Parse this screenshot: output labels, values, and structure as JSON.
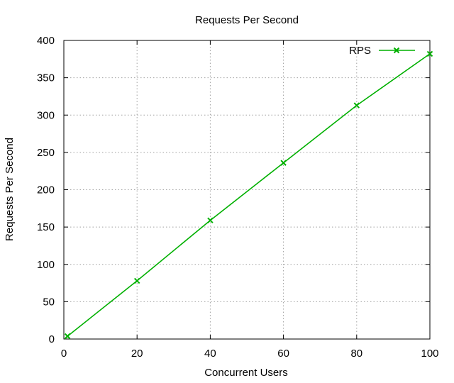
{
  "chart_data": {
    "type": "line",
    "title": "Requests Per Second",
    "xlabel": "Concurrent Users",
    "ylabel": "Requests Per Second",
    "xlim": [
      0,
      100
    ],
    "ylim": [
      0,
      400
    ],
    "x_ticks": [
      "0",
      "20",
      "40",
      "60",
      "80",
      "100"
    ],
    "y_ticks": [
      "0",
      "50",
      "100",
      "150",
      "200",
      "250",
      "300",
      "350",
      "400"
    ],
    "grid": true,
    "legend_position": "top-right",
    "series": [
      {
        "name": "RPS",
        "color": "#00b000",
        "marker": "x",
        "x": [
          1,
          20,
          40,
          60,
          80,
          100
        ],
        "y": [
          3.8,
          78,
          159,
          236,
          313,
          382
        ]
      }
    ]
  }
}
